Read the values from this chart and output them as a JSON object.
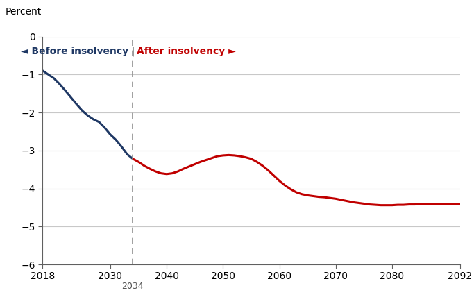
{
  "ylabel": "Percent",
  "xlim": [
    2018,
    2092
  ],
  "ylim": [
    -6,
    0
  ],
  "yticks": [
    0,
    -1,
    -2,
    -3,
    -4,
    -5,
    -6
  ],
  "ytick_labels": [
    "0",
    "−1",
    "−2",
    "−3",
    "−4",
    "−5",
    "−6"
  ],
  "xticks": [
    2018,
    2030,
    2040,
    2050,
    2060,
    2070,
    2080,
    2092
  ],
  "xtick_labels": [
    "2018",
    "2030",
    "2040",
    "2050",
    "2060",
    "2070",
    "2080",
    "2092"
  ],
  "insolvency_year": 2034,
  "before_color": "#1f3864",
  "after_color": "#c00000",
  "before_label": "◄ Before insolvency",
  "after_label": "After insolvency ►",
  "before_x": [
    2018,
    2019,
    2020,
    2021,
    2022,
    2023,
    2024,
    2025,
    2026,
    2027,
    2028,
    2029,
    2030,
    2031,
    2032,
    2033,
    2034
  ],
  "before_y": [
    -0.9,
    -1.0,
    -1.1,
    -1.25,
    -1.42,
    -1.6,
    -1.78,
    -1.95,
    -2.08,
    -2.18,
    -2.25,
    -2.4,
    -2.58,
    -2.72,
    -2.9,
    -3.1,
    -3.22
  ],
  "after_x": [
    2034,
    2035,
    2036,
    2037,
    2038,
    2039,
    2040,
    2041,
    2042,
    2043,
    2044,
    2045,
    2046,
    2047,
    2048,
    2049,
    2050,
    2051,
    2052,
    2053,
    2054,
    2055,
    2056,
    2057,
    2058,
    2059,
    2060,
    2061,
    2062,
    2063,
    2064,
    2065,
    2066,
    2067,
    2068,
    2069,
    2070,
    2071,
    2072,
    2073,
    2074,
    2075,
    2076,
    2077,
    2078,
    2079,
    2080,
    2081,
    2082,
    2083,
    2084,
    2085,
    2086,
    2087,
    2088,
    2089,
    2090,
    2091,
    2092
  ],
  "after_y": [
    -3.22,
    -3.3,
    -3.4,
    -3.48,
    -3.55,
    -3.6,
    -3.62,
    -3.6,
    -3.55,
    -3.48,
    -3.42,
    -3.36,
    -3.3,
    -3.25,
    -3.2,
    -3.15,
    -3.13,
    -3.12,
    -3.13,
    -3.15,
    -3.18,
    -3.22,
    -3.3,
    -3.4,
    -3.52,
    -3.66,
    -3.8,
    -3.92,
    -4.02,
    -4.1,
    -4.15,
    -4.18,
    -4.2,
    -4.22,
    -4.23,
    -4.25,
    -4.27,
    -4.3,
    -4.33,
    -4.36,
    -4.38,
    -4.4,
    -4.42,
    -4.43,
    -4.44,
    -4.44,
    -4.44,
    -4.43,
    -4.43,
    -4.42,
    -4.42,
    -4.41,
    -4.41,
    -4.41,
    -4.41,
    -4.41,
    -4.41,
    -4.41,
    -4.41
  ],
  "grid_color": "#c8c8c8",
  "background_color": "#ffffff",
  "dashed_line_color": "#909090",
  "line_width": 2.2
}
